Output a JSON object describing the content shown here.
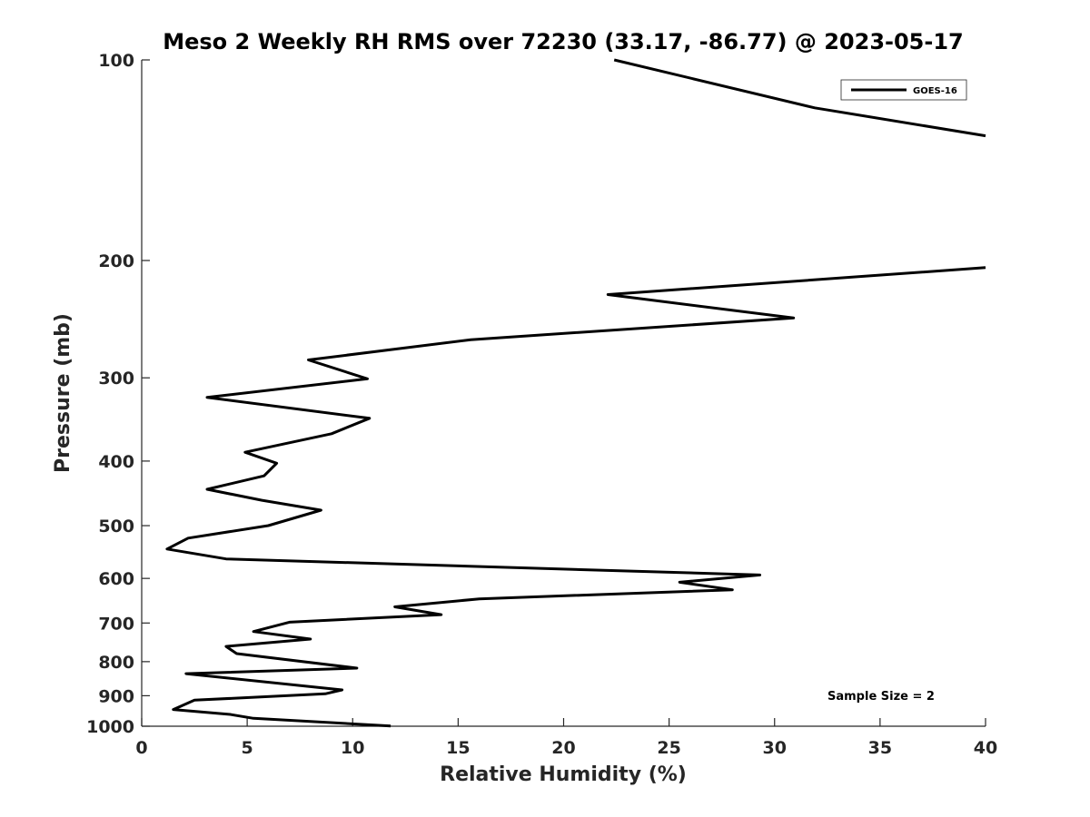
{
  "chart_data": {
    "type": "line",
    "title": "Meso 2 Weekly RH RMS over 72230 (33.17, -86.77) @ 2023-05-17",
    "xlabel": "Relative Humidity (%)",
    "ylabel": "Pressure (mb)",
    "xlim": [
      0,
      40
    ],
    "ylim": [
      100,
      1000
    ],
    "yscale": "log",
    "y_reversed": true,
    "grid": false,
    "legend_position": "top-right",
    "x_ticks": [
      0,
      5,
      10,
      15,
      20,
      25,
      30,
      35,
      40
    ],
    "x_tick_labels": [
      "0",
      "5",
      "10",
      "15",
      "20",
      "25",
      "30",
      "35",
      "40"
    ],
    "y_ticks": [
      100,
      200,
      300,
      400,
      500,
      600,
      700,
      800,
      900,
      1000
    ],
    "y_tick_labels": [
      "100",
      "200",
      "300",
      "400",
      "500",
      "600",
      "700",
      "800",
      "900",
      "1000"
    ],
    "series": [
      {
        "name": "GOES-16",
        "color": "#000000",
        "x": [
          22.4,
          31.9,
          40.0,
          null,
          40.0,
          22.1,
          30.9,
          15.6,
          7.9,
          10.7,
          3.1,
          10.8,
          9.0,
          4.9,
          6.4,
          5.8,
          3.1,
          5.7,
          8.5,
          6.0,
          2.2,
          1.2,
          4.0,
          29.3,
          25.5,
          28.0,
          16.0,
          12.0,
          14.2,
          7.0,
          5.3,
          8.0,
          4.0,
          4.5,
          10.2,
          2.1,
          9.5,
          8.7,
          2.5,
          1.5,
          4.2,
          5.3,
          11.8
        ],
        "y": [
          100,
          118,
          130,
          null,
          205,
          225,
          244,
          263,
          282,
          301,
          321,
          345,
          364,
          388,
          403,
          421,
          441,
          458,
          474,
          500,
          522,
          542,
          561,
          593,
          608,
          624,
          644,
          662,
          680,
          698,
          721,
          740,
          759,
          778,
          818,
          834,
          882,
          894,
          914,
          944,
          960,
          973,
          999
        ]
      }
    ],
    "legend": [
      "GOES-16"
    ],
    "annotations": [
      {
        "text": "Sample Size = 2",
        "position": "bottom-right"
      }
    ]
  }
}
